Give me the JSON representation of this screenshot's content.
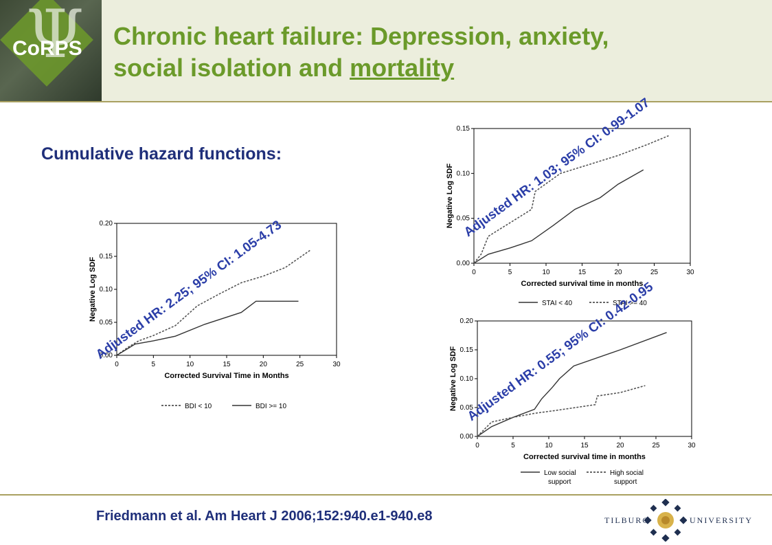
{
  "header": {
    "logo_text": "CoRPS",
    "title_part1": "Chronic heart failure: Depression, anxiety,",
    "title_part2": "social isolation and ",
    "title_underlined": "mortality"
  },
  "subtitle": "Cumulative hazard functions:",
  "citation": "Friedmann et al. Am Heart J 2006;152:940.e1-940.e8",
  "university": {
    "left": "Tilburg",
    "right": "University"
  },
  "colors": {
    "title": "#6b9a2a",
    "navy": "#1f2f7a",
    "annotation": "#2b3ea8",
    "header_bg": "#eceedd",
    "rule": "#a9a060"
  },
  "chart_data": [
    {
      "type": "line",
      "xlabel": "Corrected Survival Time in Months",
      "ylabel": "Negative Log SDF",
      "xlim": [
        0,
        30
      ],
      "ylim": [
        0,
        0.2
      ],
      "xticks": [
        "0",
        "5",
        "10",
        "15",
        "20",
        "25",
        "30"
      ],
      "yticks": [
        "0.00",
        "0.05",
        "0.10",
        "0.15",
        "0.20"
      ],
      "annotation": "Adjusted HR: 2.25; 95% CI: 1.05-4.73",
      "legend_position": "bottom",
      "series": [
        {
          "name": "BDI < 10",
          "style": "dashed",
          "x": [
            0,
            1.5,
            3,
            5,
            8,
            11,
            14,
            17,
            20,
            23,
            26.5
          ],
          "y": [
            0,
            0.012,
            0.022,
            0.03,
            0.045,
            0.075,
            0.093,
            0.11,
            0.12,
            0.133,
            0.16
          ]
        },
        {
          "name": "BDI >= 10",
          "style": "solid",
          "x": [
            0,
            2.5,
            5,
            8,
            12,
            17,
            19,
            24.8
          ],
          "y": [
            0,
            0.017,
            0.022,
            0.029,
            0.047,
            0.065,
            0.082,
            0.082
          ]
        }
      ]
    },
    {
      "type": "line",
      "xlabel": "Corrected survival time in months",
      "ylabel": "Negative Log SDF",
      "xlim": [
        0,
        30
      ],
      "ylim": [
        0,
        0.15
      ],
      "xticks": [
        "0",
        "5",
        "10",
        "15",
        "20",
        "25",
        "30"
      ],
      "yticks": [
        "0.00",
        "0.05",
        "0.10",
        "0.15"
      ],
      "annotation": "Adjusted HR: 1.03; 95% CI: 0.99-1.07",
      "legend_position": "bottom",
      "series": [
        {
          "name": "STAI < 40",
          "style": "solid",
          "x": [
            0,
            2,
            5,
            8,
            11,
            14,
            17.5,
            20,
            23.5
          ],
          "y": [
            0,
            0.01,
            0.017,
            0.025,
            0.042,
            0.06,
            0.073,
            0.088,
            0.104
          ]
        },
        {
          "name": "STAI >= 40",
          "style": "dashed",
          "x": [
            0,
            1,
            2,
            5,
            8,
            8.5,
            12,
            16,
            20,
            24,
            27
          ],
          "y": [
            0,
            0.01,
            0.03,
            0.045,
            0.06,
            0.08,
            0.1,
            0.11,
            0.12,
            0.132,
            0.142
          ]
        }
      ]
    },
    {
      "type": "line",
      "xlabel": "Corrected survival time in months",
      "ylabel": "Negative Log SDF",
      "xlim": [
        0,
        30
      ],
      "ylim": [
        0,
        0.2
      ],
      "xticks": [
        "0",
        "5",
        "10",
        "15",
        "20",
        "25",
        "30"
      ],
      "yticks": [
        "0.00",
        "0.05",
        "0.10",
        "0.15",
        "0.20"
      ],
      "annotation": "Adjusted HR: 0.55; 95% CI: 0.42-0.95",
      "legend_position": "bottom",
      "series": [
        {
          "name": "Low social support",
          "style": "solid",
          "x": [
            0,
            2,
            5,
            8,
            9,
            10.5,
            11.5,
            13.5,
            20,
            26.5
          ],
          "y": [
            0,
            0.017,
            0.033,
            0.047,
            0.065,
            0.085,
            0.1,
            0.122,
            0.15,
            0.18
          ]
        },
        {
          "name": "High social support",
          "style": "dashed",
          "x": [
            0,
            2,
            5,
            8,
            11,
            16.5,
            16.8,
            20,
            23.5
          ],
          "y": [
            0,
            0.025,
            0.033,
            0.04,
            0.045,
            0.055,
            0.07,
            0.076,
            0.088
          ]
        }
      ]
    }
  ]
}
